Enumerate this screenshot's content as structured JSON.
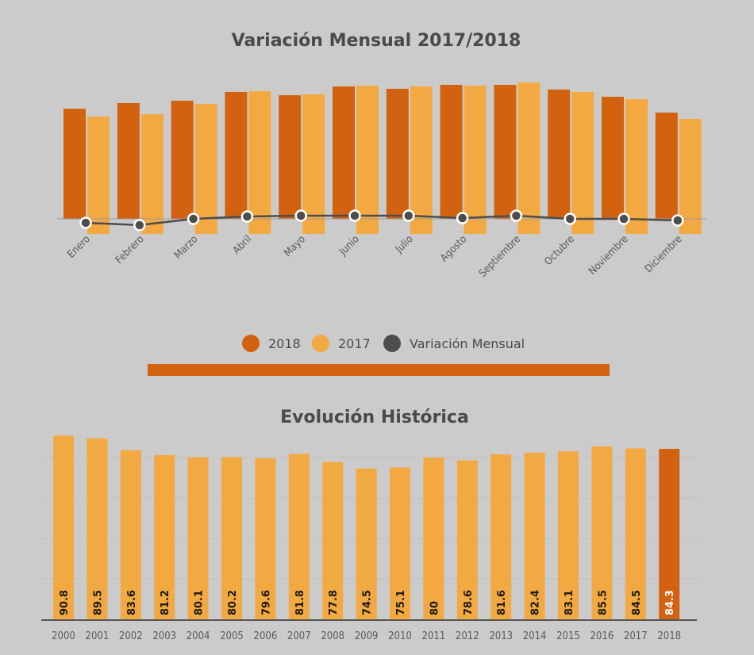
{
  "chart_data": [
    {
      "type": "bar",
      "title": "Variación Mensual 2017/2018",
      "xlabel": "",
      "ylabel": "",
      "grid": false,
      "legend": "bottom-center",
      "categories": [
        "Enero",
        "Febrero",
        "Marzo",
        "Abril",
        "Mayo",
        "Junio",
        "Julio",
        "Agosto",
        "Septiembre",
        "Octubre",
        "Noviembre",
        "Diciembre"
      ],
      "series": [
        {
          "name": "2018",
          "type": "bar",
          "color": "#d2620f",
          "values": [
            84.2,
            88.5,
            90.3,
            97.0,
            94.5,
            101.2,
            99.4,
            102.4,
            102.4,
            98.8,
            93.3,
            81.2
          ]
        },
        {
          "name": "2017",
          "type": "bar",
          "color": "#f3a941",
          "values": [
            78.2,
            80.0,
            87.9,
            97.6,
            95.2,
            101.8,
            101.2,
            101.8,
            104.2,
            97.0,
            91.5,
            76.4
          ]
        },
        {
          "name": "Variación Mensual",
          "type": "line",
          "color": "#4d4d4d",
          "values": [
            -3.0,
            -4.8,
            0.0,
            1.8,
            2.4,
            2.4,
            2.4,
            0.6,
            2.4,
            0.0,
            0.0,
            -1.2
          ]
        }
      ],
      "ylim": [
        -12,
        110
      ]
    },
    {
      "type": "bar",
      "title": "Evolución Histórica",
      "xlabel": "",
      "ylabel": "",
      "grid": true,
      "categories": [
        "2000",
        "2001",
        "2002",
        "2003",
        "2004",
        "2005",
        "2006",
        "2007",
        "2008",
        "2009",
        "2010",
        "2011",
        "2012",
        "2013",
        "2014",
        "2015",
        "2016",
        "2017",
        "2018"
      ],
      "values": [
        90.8,
        89.5,
        83.6,
        81.2,
        80.1,
        80.2,
        79.6,
        81.8,
        77.8,
        74.5,
        75.1,
        80,
        78.6,
        81.6,
        82.4,
        83.1,
        85.5,
        84.5,
        84.3
      ],
      "value_labels": [
        "90.8",
        "89.5",
        "83.6",
        "81.2",
        "80.1",
        "80.2",
        "79.6",
        "81.8",
        "77.8",
        "74.5",
        "75.1",
        "80",
        "78.6",
        "81.6",
        "82.4",
        "83.1",
        "85.5",
        "84.5",
        "84.3"
      ],
      "highlight_index": 18,
      "colors": {
        "default": "#f3a941",
        "highlight": "#d2620f"
      },
      "ylim": [
        0,
        100
      ]
    }
  ],
  "legend": {
    "items": [
      {
        "label": "2018",
        "color": "#d2620f"
      },
      {
        "label": "2017",
        "color": "#f3a941"
      },
      {
        "label": "Variación Mensual",
        "color": "#4d4d4d"
      }
    ]
  },
  "divider_color": "#d2620f"
}
